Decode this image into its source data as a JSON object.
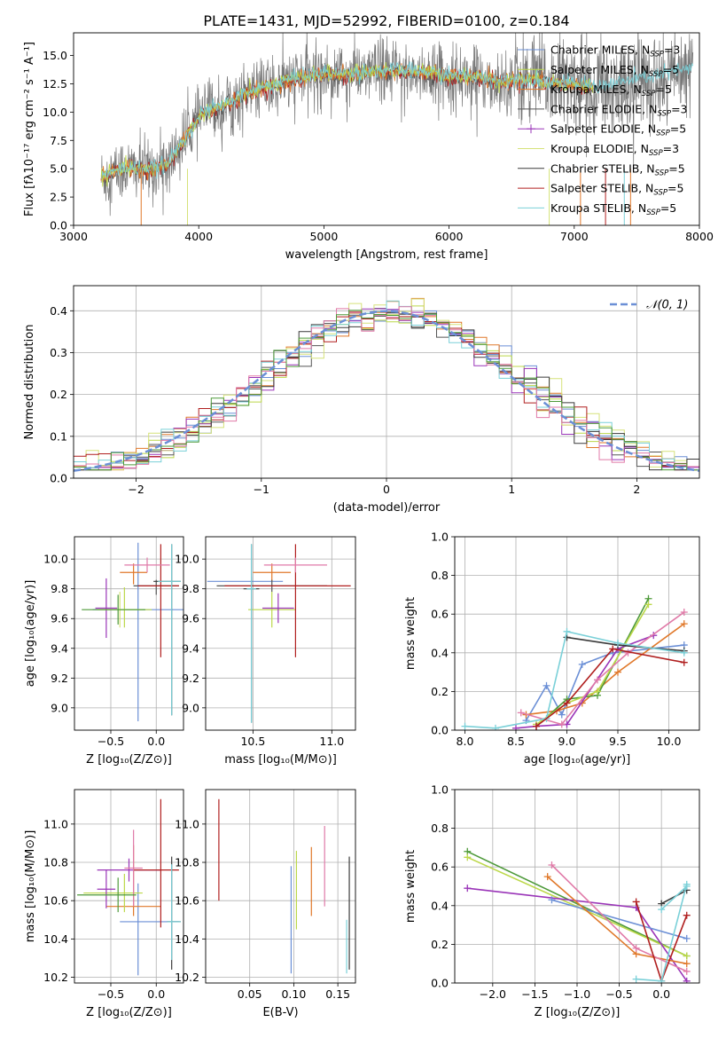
{
  "title": "PLATE=1431, MJD=52992, FIBERID=0100, z=0.184",
  "colors": {
    "Chabrier MILES": "#6b8fd6",
    "Salpeter MILES": "#bcd84a",
    "Kroupa MILES": "#e0782a",
    "Chabrier ELODIE": "#555555",
    "Salpeter ELODIE": "#9a35b8",
    "Kroupa ELODIE": "#d6e27a",
    "Chabrier STELIB": "#3a3a3a",
    "Salpeter STELIB": "#b01f1f",
    "Kroupa STELIB": "#7ad0d8",
    "extra_green": "#4e9a3a",
    "extra_pink": "#e07aa8",
    "extra_teal": "#3f7f80"
  },
  "chart_data": [
    {
      "id": "spectrum",
      "type": "line",
      "xlabel": "wavelength [Angstrom, rest frame]",
      "ylabel": "Flux [fλ10⁻¹⁷ erg cm⁻² s⁻¹ A⁻¹]",
      "xlim": [
        3000,
        8000
      ],
      "ylim": [
        0,
        17
      ],
      "xticks": [
        3000,
        4000,
        5000,
        6000,
        7000,
        8000
      ],
      "yticks": [
        0.0,
        2.5,
        5.0,
        7.5,
        10.0,
        12.5,
        15.0
      ],
      "legend_position": "top-right",
      "legend": [
        "Chabrier MILES, N_SSP=3",
        "Salpeter MILES, N_SSP=5",
        "Kroupa MILES, N_SSP=5",
        "Chabrier ELODIE, N_SSP=3",
        "Salpeter ELODIE, N_SSP=5",
        "Kroupa ELODIE, N_SSP=3",
        "Chabrier STELIB, N_SSP=5",
        "Salpeter STELIB, N_SSP=5",
        "Kroupa STELIB, N_SSP=5"
      ],
      "model_continuum": {
        "x": [
          3220,
          3400,
          3600,
          3750,
          3850,
          3950,
          4050,
          4200,
          4400,
          4600,
          4800,
          5000,
          5200,
          5400,
          5600,
          5800,
          6000,
          6200,
          6400,
          6600,
          6800,
          7000,
          7200
        ],
        "y": [
          4.2,
          5.0,
          4.9,
          5.3,
          7.0,
          8.7,
          10.0,
          10.6,
          11.7,
          12.4,
          13.0,
          13.4,
          13.3,
          13.6,
          13.6,
          13.5,
          13.2,
          13.1,
          12.7,
          12.9,
          12.6,
          12.4,
          12.2
        ]
      },
      "data_noise_amplitude": 1.4,
      "data_range": [
        3220,
        7950
      ]
    },
    {
      "id": "residual_histogram",
      "type": "line",
      "xlabel": "(data-model)/error",
      "ylabel": "Normed distribution",
      "xlim": [
        -2.5,
        2.5
      ],
      "ylim": [
        0,
        0.46
      ],
      "xticks": [
        -2,
        -1,
        0,
        1,
        2
      ],
      "yticks": [
        0.0,
        0.1,
        0.2,
        0.3,
        0.4
      ],
      "grid": true,
      "legend": [
        "𝒩(0, 1)"
      ],
      "legend_position": "top-right",
      "bin_width": 0.1,
      "reference_curve": "standard normal, dashed"
    },
    {
      "id": "age_vs_Z",
      "type": "scatter",
      "xlabel": "Z [log₁₀(Z/Z⊙)]",
      "ylabel": "age  [log₁₀(age/yr)]",
      "xlim": [
        -0.9,
        0.3
      ],
      "ylim": [
        8.85,
        10.15
      ],
      "xticks": [
        -0.5,
        0.0
      ],
      "yticks": [
        9.0,
        9.2,
        9.4,
        9.6,
        9.8,
        10.0
      ],
      "grid": true,
      "points": [
        {
          "series": "Chabrier MILES",
          "x": -0.2,
          "y": 9.66,
          "xerr": [
            0.5,
            0.5
          ],
          "yerr": [
            0.75,
            0.45
          ]
        },
        {
          "series": "Salpeter MILES",
          "x": -0.35,
          "y": 9.66,
          "xerr": [
            0.3,
            0.3
          ],
          "yerr": [
            0.12,
            0.15
          ]
        },
        {
          "series": "Kroupa MILES",
          "x": -0.25,
          "y": 9.91,
          "xerr": [
            0.15,
            0.15
          ],
          "yerr": [
            0.08,
            0.06
          ]
        },
        {
          "series": "Chabrier ELODIE",
          "x": 0.0,
          "y": 9.82,
          "xerr": [
            0.25,
            0.25
          ],
          "yerr": [
            0.06,
            0.04
          ]
        },
        {
          "series": "Salpeter ELODIE",
          "x": -0.55,
          "y": 9.67,
          "xerr": [
            0.12,
            0.12
          ],
          "yerr": [
            0.2,
            0.2
          ]
        },
        {
          "series": "Kroupa ELODIE",
          "x": -0.4,
          "y": 9.66,
          "xerr": [
            0.25,
            0.25
          ],
          "yerr": [
            0.12,
            0.12
          ]
        },
        {
          "series": "Chabrier STELIB",
          "x": 0.17,
          "y": 9.85,
          "xerr": [
            0.2,
            0.1
          ],
          "yerr": [
            0.9,
            0.25
          ]
        },
        {
          "series": "Salpeter STELIB",
          "x": 0.05,
          "y": 9.82,
          "xerr": [
            0.25,
            0.2
          ],
          "yerr": [
            0.48,
            0.28
          ]
        },
        {
          "series": "Kroupa STELIB",
          "x": 0.17,
          "y": 9.85,
          "xerr": [
            0.15,
            0.1
          ],
          "yerr": [
            0.9,
            0.25
          ]
        },
        {
          "series": "extra_pink",
          "x": -0.1,
          "y": 9.96,
          "xerr": [
            0.25,
            0.25
          ],
          "yerr": [
            0.05,
            0.05
          ]
        },
        {
          "series": "extra_green",
          "x": -0.42,
          "y": 9.66,
          "xerr": [
            0.4,
            0.3
          ],
          "yerr": [
            0.1,
            0.1
          ]
        }
      ]
    },
    {
      "id": "age_vs_mass",
      "type": "scatter",
      "xlabel": "mass [log₁₀(M/M⊙)]",
      "ylabel": "",
      "xlim": [
        10.2,
        11.15
      ],
      "ylim": [
        8.85,
        10.15
      ],
      "xticks": [
        10.5,
        11.0
      ],
      "yticks": [
        9.0,
        9.2,
        9.4,
        9.6,
        9.8,
        10.0
      ],
      "grid": true,
      "points": [
        {
          "series": "Chabrier MILES",
          "x": 10.49,
          "y": 9.85,
          "xerr": [
            0.28,
            0.2
          ],
          "yerr": [
            0.03,
            0.03
          ]
        },
        {
          "series": "Kroupa MILES",
          "x": 10.62,
          "y": 9.91,
          "xerr": [
            0.12,
            0.12
          ],
          "yerr": [
            0.06,
            0.06
          ]
        },
        {
          "series": "Salpeter MILES",
          "x": 10.62,
          "y": 9.66,
          "xerr": [
            0.15,
            0.15
          ],
          "yerr": [
            0.12,
            0.12
          ]
        },
        {
          "series": "Salpeter ELODIE",
          "x": 10.66,
          "y": 9.67,
          "xerr": [
            0.1,
            0.1
          ],
          "yerr": [
            0.1,
            0.1
          ]
        },
        {
          "series": "Chabrier ELODIE",
          "x": 10.62,
          "y": 9.82,
          "xerr": [
            0.35,
            0.35
          ],
          "yerr": [
            0.04,
            0.04
          ]
        },
        {
          "series": "Salpeter STELIB",
          "x": 10.77,
          "y": 9.82,
          "xerr": [
            0.45,
            0.35
          ],
          "yerr": [
            0.48,
            0.28
          ]
        },
        {
          "series": "Chabrier STELIB",
          "x": 10.49,
          "y": 9.8,
          "xerr": [
            0.05,
            0.05
          ],
          "yerr": [
            0.9,
            0.3
          ]
        },
        {
          "series": "Kroupa STELIB",
          "x": 10.49,
          "y": 9.8,
          "xerr": [
            0.03,
            0.03
          ],
          "yerr": [
            0.9,
            0.3
          ]
        },
        {
          "series": "extra_pink",
          "x": 10.77,
          "y": 9.96,
          "xerr": [
            0.2,
            0.2
          ],
          "yerr": [
            0.05,
            0.05
          ]
        }
      ]
    },
    {
      "id": "mass_weight_vs_age",
      "type": "line",
      "xlabel": "age  [log₁₀(age/yr)]",
      "ylabel": "mass weight",
      "xlim": [
        7.9,
        10.3
      ],
      "ylim": [
        0,
        1.0
      ],
      "xticks": [
        8.0,
        8.5,
        9.0,
        9.5,
        10.0
      ],
      "yticks": [
        0.0,
        0.2,
        0.4,
        0.6,
        0.8,
        1.0
      ],
      "grid": true,
      "series": [
        {
          "color": "Chabrier MILES",
          "x": [
            8.6,
            8.8,
            8.95,
            9.15,
            9.45,
            10.15
          ],
          "y": [
            0.05,
            0.23,
            0.08,
            0.34,
            0.4,
            0.44
          ]
        },
        {
          "color": "Kroupa MILES",
          "x": [
            8.6,
            8.9,
            9.15,
            9.5,
            10.15
          ],
          "y": [
            0.08,
            0.1,
            0.14,
            0.3,
            0.55
          ]
        },
        {
          "color": "extra_green",
          "x": [
            8.7,
            9.0,
            9.3,
            9.8
          ],
          "y": [
            0.02,
            0.16,
            0.18,
            0.68
          ]
        },
        {
          "color": "Salpeter MILES",
          "x": [
            8.7,
            9.0,
            9.3,
            9.8
          ],
          "y": [
            0.03,
            0.14,
            0.2,
            0.65
          ]
        },
        {
          "color": "Salpeter ELODIE",
          "x": [
            8.5,
            8.7,
            9.0,
            9.5,
            9.85
          ],
          "y": [
            0.01,
            0.02,
            0.03,
            0.42,
            0.49
          ]
        },
        {
          "color": "extra_pink",
          "x": [
            8.55,
            8.95,
            9.3,
            9.6,
            10.15
          ],
          "y": [
            0.09,
            0.03,
            0.26,
            0.4,
            0.61
          ]
        },
        {
          "color": "Chabrier STELIB",
          "x": [
            9.0,
            9.5,
            10.15
          ],
          "y": [
            0.48,
            0.44,
            0.41
          ]
        },
        {
          "color": "Kroupa STELIB",
          "x": [
            8.0,
            8.3,
            8.8,
            9.0,
            9.5,
            10.15
          ],
          "y": [
            0.02,
            0.01,
            0.06,
            0.51,
            0.45,
            0.4
          ]
        },
        {
          "color": "Salpeter STELIB",
          "x": [
            8.7,
            9.0,
            9.45,
            10.15
          ],
          "y": [
            0.02,
            0.14,
            0.42,
            0.35
          ]
        }
      ]
    },
    {
      "id": "mass_vs_Z",
      "type": "scatter",
      "xlabel": "Z [log₁₀(Z/Z⊙)]",
      "ylabel": "mass [log₁₀(M/M⊙)]",
      "xlim": [
        -0.9,
        0.3
      ],
      "ylim": [
        10.17,
        11.18
      ],
      "xticks": [
        -0.5,
        0.0
      ],
      "yticks": [
        10.2,
        10.4,
        10.6,
        10.8,
        11.0
      ],
      "grid": true,
      "points": [
        {
          "series": "Chabrier MILES",
          "x": -0.2,
          "y": 10.49,
          "xerr": [
            0.2,
            0.45
          ],
          "yerr": [
            0.28,
            0.2
          ]
        },
        {
          "series": "Kroupa MILES",
          "x": -0.25,
          "y": 10.57,
          "xerr": [
            0.3,
            0.3
          ],
          "yerr": [
            0.05,
            0.32
          ]
        },
        {
          "series": "Salpeter MILES",
          "x": -0.35,
          "y": 10.64,
          "xerr": [
            0.45,
            0.2
          ],
          "yerr": [
            0.1,
            0.1
          ]
        },
        {
          "series": "Salpeter ELODIE",
          "x": -0.55,
          "y": 10.66,
          "xerr": [
            0.1,
            0.1
          ],
          "yerr": [
            0.1,
            0.1
          ]
        },
        {
          "series": "Salpeter ELODIE b",
          "x": -0.3,
          "y": 10.76,
          "xerr": [
            0.35,
            0.35
          ],
          "yerr": [
            0.06,
            0.06
          ]
        },
        {
          "series": "Salpeter STELIB",
          "x": 0.05,
          "y": 10.76,
          "xerr": [
            0.3,
            0.2
          ],
          "yerr": [
            0.3,
            0.37
          ]
        },
        {
          "series": "Chabrier STELIB",
          "x": 0.17,
          "y": 10.49,
          "xerr": [
            0.05,
            0.1
          ],
          "yerr": [
            0.25,
            0.34
          ]
        },
        {
          "series": "Kroupa STELIB",
          "x": 0.17,
          "y": 10.49,
          "xerr": [
            0.05,
            0.1
          ],
          "yerr": [
            0.2,
            0.3
          ]
        },
        {
          "series": "extra_pink",
          "x": -0.25,
          "y": 10.77,
          "xerr": [
            0.1,
            0.1
          ],
          "yerr": [
            0.2,
            0.2
          ]
        },
        {
          "series": "extra_green",
          "x": -0.42,
          "y": 10.63,
          "xerr": [
            0.45,
            0.2
          ],
          "yerr": [
            0.09,
            0.09
          ]
        }
      ]
    },
    {
      "id": "mass_vs_EBV",
      "type": "scatter",
      "xlabel": "E(B-V)",
      "ylabel": "",
      "xlim": [
        0.0,
        0.17
      ],
      "ylim": [
        10.17,
        11.18
      ],
      "xticks": [
        0.05,
        0.1,
        0.15
      ],
      "yticks": [
        10.2,
        10.4,
        10.6,
        10.8,
        11.0
      ],
      "grid": true,
      "points": [
        {
          "series": "Salpeter STELIB",
          "x": 0.015,
          "y": 10.6,
          "y_top": 11.13
        },
        {
          "series": "Chabrier MILES",
          "x": 0.097,
          "y": 10.22,
          "y_top": 10.78
        },
        {
          "series": "Salpeter MILES",
          "x": 0.103,
          "y": 10.45,
          "y_top": 10.86
        },
        {
          "series": "Kroupa MILES",
          "x": 0.12,
          "y": 10.52,
          "y_top": 10.88
        },
        {
          "series": "extra_pink",
          "x": 0.135,
          "y": 10.57,
          "y_top": 10.99
        },
        {
          "series": "Chabrier STELIB",
          "x": 0.163,
          "y": 10.24,
          "y_top": 10.83
        },
        {
          "series": "Kroupa STELIB",
          "x": 0.16,
          "y": 10.22,
          "y_top": 10.5
        }
      ]
    },
    {
      "id": "mass_weight_vs_Z",
      "type": "line",
      "xlabel": "Z [log₁₀(Z/Z⊙)]",
      "ylabel": "mass weight",
      "xlim": [
        -2.45,
        0.45
      ],
      "ylim": [
        0,
        1.0
      ],
      "xticks": [
        -2.0,
        -1.5,
        -1.0,
        -0.5,
        0.0
      ],
      "yticks": [
        0.0,
        0.2,
        0.4,
        0.6,
        0.8,
        1.0
      ],
      "grid": true,
      "series": [
        {
          "color": "extra_green",
          "x": [
            -2.3,
            0.3
          ],
          "y": [
            0.68,
            0.14
          ]
        },
        {
          "color": "Salpeter MILES",
          "x": [
            -2.3,
            0.3
          ],
          "y": [
            0.65,
            0.14
          ]
        },
        {
          "color": "Salpeter ELODIE",
          "x": [
            -2.3,
            -0.3,
            0.3
          ],
          "y": [
            0.49,
            0.39,
            0.01
          ]
        },
        {
          "color": "Chabrier MILES",
          "x": [
            -1.3,
            0.3
          ],
          "y": [
            0.43,
            0.23
          ]
        },
        {
          "color": "Kroupa MILES",
          "x": [
            -1.35,
            -0.3,
            0.3
          ],
          "y": [
            0.55,
            0.15,
            0.1
          ]
        },
        {
          "color": "extra_pink",
          "x": [
            -1.3,
            -0.3,
            0.3
          ],
          "y": [
            0.61,
            0.18,
            0.06
          ]
        },
        {
          "color": "Salpeter STELIB",
          "x": [
            -0.3,
            0.0,
            0.3
          ],
          "y": [
            0.42,
            0.01,
            0.35
          ]
        },
        {
          "color": "Chabrier STELIB",
          "x": [
            0.0,
            0.3
          ],
          "y": [
            0.41,
            0.48
          ]
        },
        {
          "color": "Kroupa STELIB",
          "x": [
            -0.3,
            0.0,
            0.3
          ],
          "y": [
            0.02,
            0.01,
            0.51
          ]
        },
        {
          "color": "Kroupa STELIB",
          "x": [
            0.0,
            0.3
          ],
          "y": [
            0.38,
            0.5
          ]
        }
      ]
    }
  ]
}
